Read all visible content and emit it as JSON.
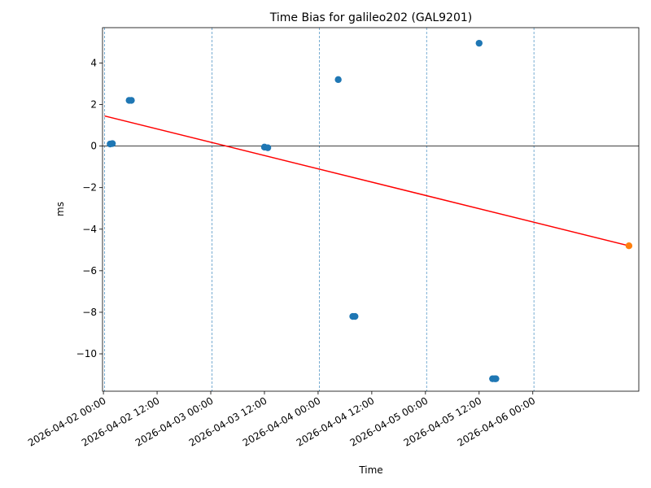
{
  "chart_data": {
    "type": "scatter",
    "title": "Time Bias for galileo202 (GAL9201)",
    "xlabel": "Time",
    "ylabel": "ms",
    "x_axis_type": "datetime",
    "xlim": [
      "2026-04-01 23:48",
      "2026-04-06 23:42"
    ],
    "ylim": [
      -11.8,
      5.7
    ],
    "x_ticks": [
      "2026-04-02 00:00",
      "2026-04-02 12:00",
      "2026-04-03 00:00",
      "2026-04-03 12:00",
      "2026-04-04 00:00",
      "2026-04-04 12:00",
      "2026-04-05 00:00",
      "2026-04-05 12:00",
      "2026-04-06 00:00"
    ],
    "y_ticks": [
      4,
      2,
      0,
      -2,
      -4,
      -6,
      -8,
      -10
    ],
    "y_tick_labels": [
      "4",
      "2",
      "0",
      "−2",
      "−4",
      "−6",
      "−8",
      "−10"
    ],
    "vertical_gridlines": [
      "2026-04-02 00:15",
      "2026-04-03 00:15",
      "2026-04-04 00:15",
      "2026-04-05 00:15",
      "2026-04-06 00:15"
    ],
    "zero_line": 0,
    "series": [
      {
        "kind": "scatter",
        "color": "#1f77b4",
        "points": [
          {
            "x": "2026-04-02 01:30",
            "y": 0.1
          },
          {
            "x": "2026-04-02 02:00",
            "y": 0.12
          },
          {
            "x": "2026-04-02 05:45",
            "y": 2.2
          },
          {
            "x": "2026-04-02 06:15",
            "y": 2.2
          },
          {
            "x": "2026-04-03 12:00",
            "y": -0.05
          },
          {
            "x": "2026-04-03 12:45",
            "y": -0.08
          },
          {
            "x": "2026-04-04 04:30",
            "y": 3.2
          },
          {
            "x": "2026-04-04 07:45",
            "y": -8.2
          },
          {
            "x": "2026-04-04 08:15",
            "y": -8.2
          },
          {
            "x": "2026-04-05 12:00",
            "y": 4.95
          },
          {
            "x": "2026-04-05 15:00",
            "y": -11.2
          },
          {
            "x": "2026-04-05 15:30",
            "y": -11.2
          },
          {
            "x": "2026-04-05 15:45",
            "y": -11.2
          }
        ]
      },
      {
        "kind": "line",
        "color": "#ff0000",
        "points": [
          {
            "x": "2026-04-02 00:15",
            "y": 1.45
          },
          {
            "x": "2026-04-06 21:30",
            "y": -4.8
          }
        ]
      },
      {
        "kind": "scatter",
        "color": "#ff7f0e",
        "points": [
          {
            "x": "2026-04-06 21:30",
            "y": -4.8
          }
        ]
      }
    ],
    "grid": false,
    "legend": "none"
  }
}
